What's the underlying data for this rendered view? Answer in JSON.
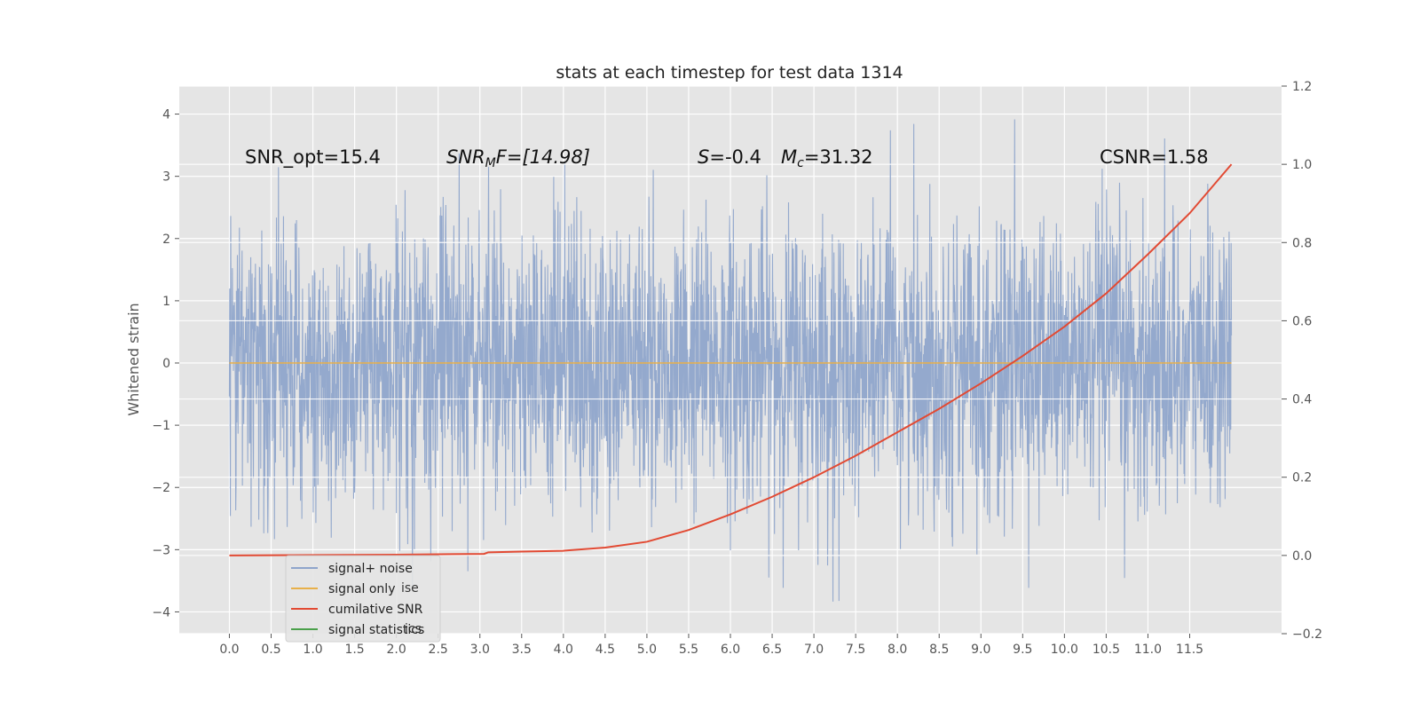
{
  "chart_data": {
    "type": "line",
    "title": "stats at each timestep for test data 1314",
    "ylabel": "Whitened strain",
    "xlabel": "",
    "xlim": [
      -0.6,
      12.6
    ],
    "ylim": [
      -4.35,
      4.45
    ],
    "y2lim": [
      -0.2,
      1.2
    ],
    "x_ticks": [
      "0.0",
      "0.5",
      "1.0",
      "1.5",
      "2.0",
      "2.5",
      "3.0",
      "3.5",
      "4.0",
      "4.5",
      "5.0",
      "5.5",
      "6.0",
      "6.5",
      "7.0",
      "7.5",
      "8.0",
      "8.5",
      "9.0",
      "9.5",
      "10.0",
      "10.5",
      "11.0",
      "11.5"
    ],
    "y_ticks": [
      "4",
      "3",
      "2",
      "1",
      "0",
      "−1",
      "−2",
      "−3",
      "−4"
    ],
    "y2_ticks": [
      "1.2",
      "1.0",
      "0.8",
      "0.6",
      "0.4",
      "0.2",
      "0.0",
      "−0.2"
    ],
    "grid": true,
    "legend_position": "lower-left",
    "annotations": {
      "snr_opt": "SNR_opt=15.4",
      "snr_mf_main": "SNR",
      "snr_mf_sub": "M",
      "snr_mf_tail": "F=[14.98]",
      "s_main": "S",
      "s_tail": "=-0.4",
      "mc_main": "M",
      "mc_sub": "c",
      "mc_tail": "=31.32",
      "csnr": "CSNR=1.58"
    },
    "series": [
      {
        "name": "signal+ noise",
        "color": "#8fa5cb",
        "x_range": [
          0.0,
          12.0
        ],
        "approx_std": 1.0,
        "min": -3.9,
        "max": 4.1
      },
      {
        "name": "signal only",
        "color": "#e8b04a",
        "x": [
          0,
          12
        ],
        "y": [
          0,
          0
        ]
      },
      {
        "name": "cumilative SNR",
        "color": "#e24a33",
        "axis": "right",
        "x": [
          0,
          1,
          2,
          3.05,
          3.1,
          3.5,
          4.0,
          4.5,
          5.0,
          5.5,
          6.0,
          6.5,
          7.0,
          7.5,
          8.0,
          8.5,
          9.0,
          9.5,
          10.0,
          10.5,
          11.0,
          11.5,
          12.0
        ],
        "y": [
          0.0,
          0.001,
          0.002,
          0.004,
          0.008,
          0.01,
          0.012,
          0.02,
          0.035,
          0.065,
          0.105,
          0.15,
          0.2,
          0.255,
          0.315,
          0.375,
          0.44,
          0.51,
          0.585,
          0.67,
          0.77,
          0.875,
          1.0
        ]
      },
      {
        "name": "signal statistics",
        "color": "#4aa04a"
      }
    ],
    "legend_ghost": {
      "item1": "ise",
      "item2": "ics"
    }
  }
}
